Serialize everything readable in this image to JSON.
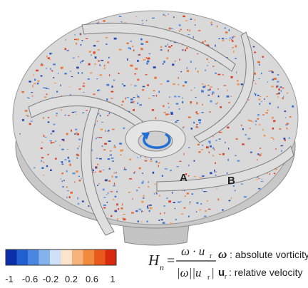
{
  "figure": {
    "labels": [
      "A",
      "B"
    ],
    "colorbar": {
      "colors": [
        "#0b2fa8",
        "#1f5fd0",
        "#4a86e0",
        "#86b2ec",
        "#cfe1f7",
        "#fbe3cc",
        "#f6b47a",
        "#f08a3c",
        "#e85a1c",
        "#d92a10"
      ],
      "ticks": [
        "-1",
        "-0.6",
        "-0.2",
        "0.2",
        "0.6",
        "1"
      ]
    },
    "formula": {
      "lhs": "H",
      "lhs_sub": "n",
      "equals": "=",
      "numerator": "ω · u",
      "numerator_sub": "r",
      "denominator": "|ω||u",
      "denominator_sub": "r",
      "denominator_end": "|"
    },
    "legend": [
      {
        "symbol": "ω",
        "text": ": absolute vorticity"
      },
      {
        "symbol": "u",
        "symbol_sub": "r",
        "text": ": relative velocity"
      }
    ]
  }
}
